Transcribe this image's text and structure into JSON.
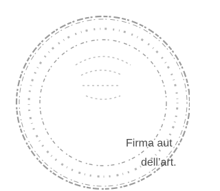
{
  "stamp": {
    "lines": [
      "Firma aut",
      "dell’art."
    ]
  }
}
